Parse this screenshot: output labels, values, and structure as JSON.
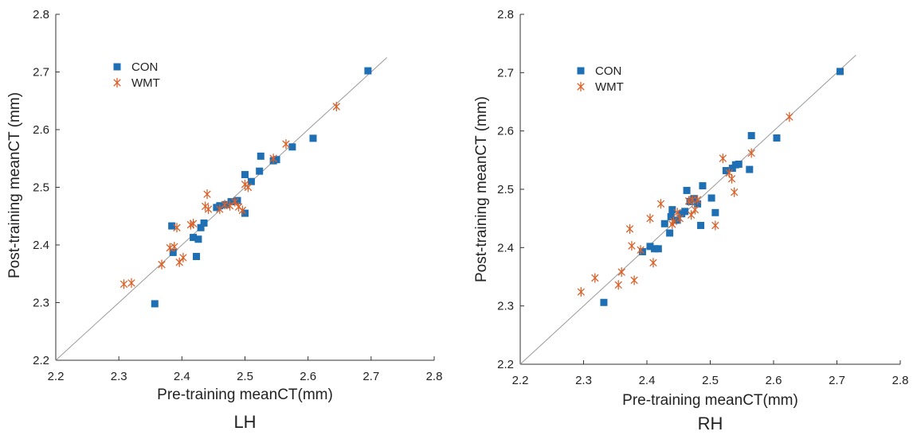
{
  "chart_data": [
    {
      "type": "scatter",
      "title": "LH",
      "xlabel": "Pre-training meanCT(mm)",
      "ylabel": "Post-training meanCT (mm)",
      "xlim": [
        2.2,
        2.8
      ],
      "ylim": [
        2.2,
        2.8
      ],
      "xticks": [
        "2.2",
        "2.3",
        "2.4",
        "2.5",
        "2.6",
        "2.7",
        "2.8"
      ],
      "yticks": [
        "2.2",
        "2.3",
        "2.4",
        "2.5",
        "2.6",
        "2.7",
        "2.8"
      ],
      "legend_position": "top-left",
      "reference_line": "identity",
      "series": [
        {
          "name": "CON",
          "color": "#1f6fb4",
          "marker": "square",
          "points": [
            [
              2.357,
              2.298
            ],
            [
              2.384,
              2.433
            ],
            [
              2.386,
              2.387
            ],
            [
              2.418,
              2.413
            ],
            [
              2.423,
              2.38
            ],
            [
              2.426,
              2.41
            ],
            [
              2.43,
              2.43
            ],
            [
              2.435,
              2.438
            ],
            [
              2.455,
              2.465
            ],
            [
              2.46,
              2.468
            ],
            [
              2.47,
              2.47
            ],
            [
              2.478,
              2.475
            ],
            [
              2.488,
              2.477
            ],
            [
              2.5,
              2.455
            ],
            [
              2.5,
              2.522
            ],
            [
              2.51,
              2.51
            ],
            [
              2.523,
              2.528
            ],
            [
              2.525,
              2.554
            ],
            [
              2.545,
              2.546
            ],
            [
              2.55,
              2.548
            ],
            [
              2.575,
              2.57
            ],
            [
              2.608,
              2.585
            ],
            [
              2.695,
              2.702
            ]
          ]
        },
        {
          "name": "WMT",
          "color": "#d9622b",
          "marker": "asterisk",
          "points": [
            [
              2.308,
              2.332
            ],
            [
              2.32,
              2.334
            ],
            [
              2.368,
              2.366
            ],
            [
              2.381,
              2.395
            ],
            [
              2.388,
              2.397
            ],
            [
              2.392,
              2.43
            ],
            [
              2.396,
              2.37
            ],
            [
              2.402,
              2.378
            ],
            [
              2.414,
              2.435
            ],
            [
              2.418,
              2.437
            ],
            [
              2.437,
              2.467
            ],
            [
              2.44,
              2.488
            ],
            [
              2.442,
              2.462
            ],
            [
              2.46,
              2.462
            ],
            [
              2.468,
              2.47
            ],
            [
              2.476,
              2.468
            ],
            [
              2.484,
              2.475
            ],
            [
              2.49,
              2.466
            ],
            [
              2.496,
              2.46
            ],
            [
              2.5,
              2.505
            ],
            [
              2.505,
              2.5
            ],
            [
              2.545,
              2.55
            ],
            [
              2.565,
              2.575
            ],
            [
              2.645,
              2.64
            ]
          ]
        }
      ]
    },
    {
      "type": "scatter",
      "title": "RH",
      "xlabel": "Pre-training meanCT(mm)",
      "ylabel": "Post-training meanCT (mm)",
      "xlim": [
        2.2,
        2.8
      ],
      "ylim": [
        2.2,
        2.8
      ],
      "xticks": [
        "2.2",
        "2.3",
        "2.4",
        "2.5",
        "2.6",
        "2.7",
        "2.8"
      ],
      "yticks": [
        "2.2",
        "2.3",
        "2.4",
        "2.5",
        "2.6",
        "2.7",
        "2.8"
      ],
      "legend_position": "top-left",
      "reference_line": "identity",
      "series": [
        {
          "name": "CON",
          "color": "#1f6fb4",
          "marker": "square",
          "points": [
            [
              2.332,
              2.306
            ],
            [
              2.393,
              2.393
            ],
            [
              2.405,
              2.402
            ],
            [
              2.412,
              2.398
            ],
            [
              2.418,
              2.398
            ],
            [
              2.428,
              2.441
            ],
            [
              2.436,
              2.425
            ],
            [
              2.438,
              2.453
            ],
            [
              2.44,
              2.465
            ],
            [
              2.448,
              2.447
            ],
            [
              2.455,
              2.458
            ],
            [
              2.46,
              2.462
            ],
            [
              2.463,
              2.498
            ],
            [
              2.468,
              2.479
            ],
            [
              2.474,
              2.484
            ],
            [
              2.48,
              2.475
            ],
            [
              2.485,
              2.438
            ],
            [
              2.488,
              2.506
            ],
            [
              2.502,
              2.485
            ],
            [
              2.508,
              2.46
            ],
            [
              2.525,
              2.532
            ],
            [
              2.535,
              2.536
            ],
            [
              2.54,
              2.542
            ],
            [
              2.545,
              2.543
            ],
            [
              2.562,
              2.534
            ],
            [
              2.565,
              2.592
            ],
            [
              2.605,
              2.588
            ],
            [
              2.705,
              2.702
            ]
          ]
        },
        {
          "name": "WMT",
          "color": "#d9622b",
          "marker": "asterisk",
          "points": [
            [
              2.296,
              2.324
            ],
            [
              2.318,
              2.348
            ],
            [
              2.355,
              2.336
            ],
            [
              2.36,
              2.358
            ],
            [
              2.373,
              2.432
            ],
            [
              2.376,
              2.403
            ],
            [
              2.38,
              2.344
            ],
            [
              2.39,
              2.396
            ],
            [
              2.405,
              2.45
            ],
            [
              2.41,
              2.374
            ],
            [
              2.422,
              2.475
            ],
            [
              2.44,
              2.44
            ],
            [
              2.442,
              2.445
            ],
            [
              2.448,
              2.46
            ],
            [
              2.452,
              2.45
            ],
            [
              2.466,
              2.48
            ],
            [
              2.47,
              2.456
            ],
            [
              2.472,
              2.482
            ],
            [
              2.476,
              2.465
            ],
            [
              2.48,
              2.482
            ],
            [
              2.508,
              2.438
            ],
            [
              2.52,
              2.553
            ],
            [
              2.53,
              2.528
            ],
            [
              2.534,
              2.518
            ],
            [
              2.538,
              2.495
            ],
            [
              2.565,
              2.562
            ],
            [
              2.625,
              2.624
            ]
          ]
        }
      ]
    }
  ]
}
